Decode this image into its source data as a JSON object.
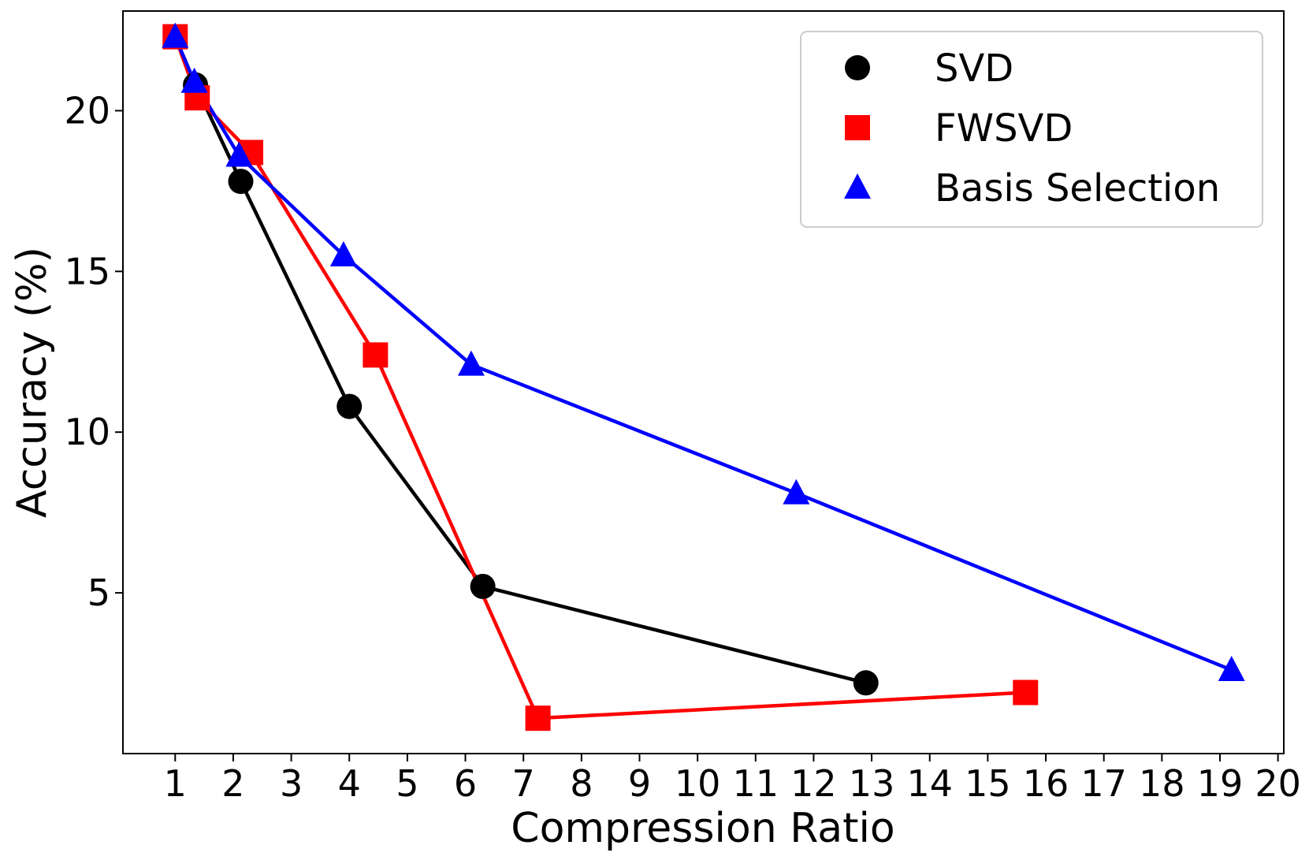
{
  "chart_data": {
    "type": "line",
    "title": "",
    "xlabel": "Compression Ratio",
    "ylabel": "Accuracy (%)",
    "xlim": [
      0.1,
      20.1
    ],
    "ylim": [
      0.0,
      23.1
    ],
    "xticks": [
      1,
      2,
      3,
      4,
      5,
      6,
      7,
      8,
      9,
      10,
      11,
      12,
      13,
      14,
      15,
      16,
      17,
      18,
      19,
      20
    ],
    "yticks": [
      5,
      10,
      15,
      20
    ],
    "grid": false,
    "legend_position": "top-right",
    "series": [
      {
        "name": "SVD",
        "marker": "circle",
        "color": "#000000",
        "x": [
          1.35,
          2.13,
          4.0,
          6.3,
          12.9
        ],
        "y": [
          20.8,
          17.8,
          10.8,
          5.2,
          2.2
        ]
      },
      {
        "name": "FWSVD",
        "marker": "square",
        "color": "#ff0000",
        "x": [
          1.0,
          1.38,
          2.3,
          4.45,
          7.25,
          15.65
        ],
        "y": [
          22.3,
          20.4,
          18.7,
          12.4,
          1.1,
          1.9
        ]
      },
      {
        "name": "Basis Selection",
        "marker": "triangle",
        "color": "#0000ff",
        "x": [
          1.0,
          1.33,
          2.1,
          3.9,
          6.1,
          11.7,
          19.2
        ],
        "y": [
          22.3,
          20.9,
          18.6,
          15.5,
          12.1,
          8.1,
          2.6
        ]
      }
    ]
  }
}
